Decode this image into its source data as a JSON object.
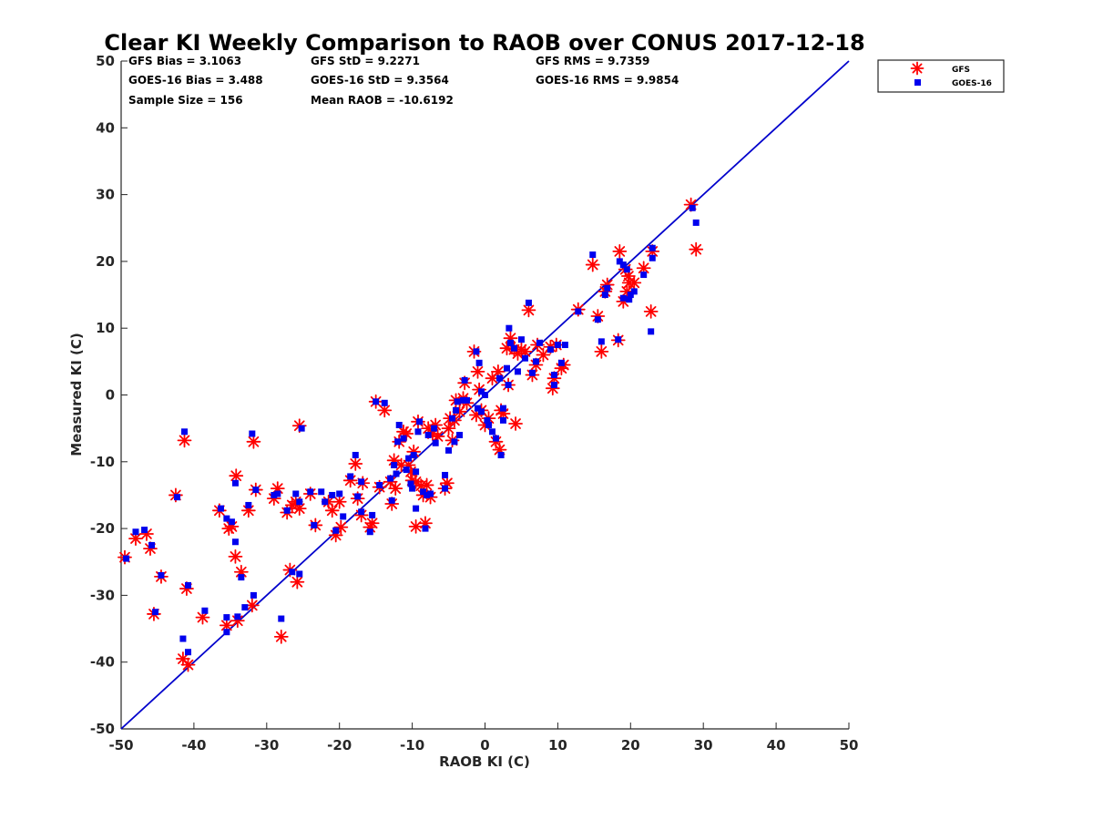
{
  "chart_data": {
    "type": "scatter",
    "title": "Clear KI Weekly Comparison to RAOB over CONUS 2017-12-18",
    "xlabel": "RAOB KI (C)",
    "ylabel": "Measured KI (C)",
    "xlim": [
      -50,
      50
    ],
    "ylim": [
      -50,
      50
    ],
    "xticks": [
      "-50",
      "-40",
      "-30",
      "-20",
      "-10",
      "0",
      "10",
      "20",
      "30",
      "40",
      "50"
    ],
    "yticks": [
      "50",
      "40",
      "30",
      "20",
      "10",
      "0",
      "-10",
      "-20",
      "-30",
      "-40",
      "-50"
    ],
    "grid": false,
    "reference_line": {
      "name": "1:1 line",
      "color": "#0000cc",
      "from": [
        -50,
        -50
      ],
      "to": [
        50,
        50
      ]
    },
    "legend_position": "top-right outside",
    "stats": [
      [
        "GFS Bias = 3.1063",
        "GFS StD = 9.2271",
        "GFS RMS = 9.7359"
      ],
      [
        "GOES-16 Bias = 3.488",
        "GOES-16 StD = 9.3564",
        "GOES-16 RMS = 9.9854"
      ],
      [
        "Sample Size = 156",
        "Mean RAOB = -10.6192"
      ]
    ],
    "series": [
      {
        "name": "GFS",
        "marker": "asterisk",
        "color": "#ff0000",
        "points": [
          [
            -49.5,
            -24.3
          ],
          [
            -48,
            -21.5
          ],
          [
            -46.5,
            -20.8
          ],
          [
            -46,
            -23
          ],
          [
            -45.5,
            -32.8
          ],
          [
            -44.5,
            -27.2
          ],
          [
            -42.5,
            -15
          ],
          [
            -41.5,
            -39.5
          ],
          [
            -41.3,
            -6.8
          ],
          [
            -41,
            -29
          ],
          [
            -40.8,
            -40.4
          ],
          [
            -38.8,
            -33.3
          ],
          [
            -36.5,
            -17.3
          ],
          [
            -35.5,
            -34.5
          ],
          [
            -35.2,
            -20
          ],
          [
            -34.8,
            -19.7
          ],
          [
            -34.3,
            -24.2
          ],
          [
            -34.2,
            -12.1
          ],
          [
            -34,
            -33.8
          ],
          [
            -33.5,
            -26.5
          ],
          [
            -32.5,
            -17.3
          ],
          [
            -32,
            -31.5
          ],
          [
            -31.8,
            -7
          ],
          [
            -31.5,
            -14.2
          ],
          [
            -29,
            -15.5
          ],
          [
            -28.5,
            -14
          ],
          [
            -28,
            -36.2
          ],
          [
            -27.2,
            -17.6
          ],
          [
            -26.8,
            -26.2
          ],
          [
            -26.5,
            -16.5
          ],
          [
            -26,
            -16
          ],
          [
            -25.8,
            -28
          ],
          [
            -25.5,
            -17
          ],
          [
            -25.5,
            -4.6
          ],
          [
            -24,
            -14.8
          ],
          [
            -23.3,
            -19.5
          ],
          [
            -21.5,
            -16
          ],
          [
            -21,
            -17.3
          ],
          [
            -20.5,
            -21
          ],
          [
            -20,
            -16
          ],
          [
            -19.8,
            -19.8
          ],
          [
            -18.5,
            -12.8
          ],
          [
            -17.8,
            -10.3
          ],
          [
            -17.5,
            -15.5
          ],
          [
            -17,
            -18
          ],
          [
            -16.8,
            -13.2
          ],
          [
            -15.8,
            -19.8
          ],
          [
            -15.5,
            -19.2
          ],
          [
            -15,
            -1
          ],
          [
            -14.5,
            -13.8
          ],
          [
            -13.8,
            -2.3
          ],
          [
            -13,
            -13
          ],
          [
            -12.8,
            -16.3
          ],
          [
            -12.5,
            -9.8
          ],
          [
            -12.3,
            -14
          ],
          [
            -11.8,
            -7
          ],
          [
            -11.5,
            -10.5
          ],
          [
            -11.2,
            -5.5
          ],
          [
            -10.8,
            -5.8
          ],
          [
            -10.5,
            -10.5
          ],
          [
            -10.2,
            -11.5
          ],
          [
            -10,
            -12.8
          ],
          [
            -9.8,
            -8.5
          ],
          [
            -9.5,
            -19.7
          ],
          [
            -9.5,
            -13
          ],
          [
            -9.2,
            -4
          ],
          [
            -8.8,
            -13.6
          ],
          [
            -8.5,
            -15
          ],
          [
            -8.2,
            -19.2
          ],
          [
            -8,
            -13.5
          ],
          [
            -7.8,
            -5
          ],
          [
            -7.5,
            -15.3
          ],
          [
            -7.2,
            -5.8
          ],
          [
            -6.8,
            -4.5
          ],
          [
            -6.5,
            -6.2
          ],
          [
            -5.5,
            -14
          ],
          [
            -5.2,
            -13.2
          ],
          [
            -5,
            -5
          ],
          [
            -4.8,
            -3.5
          ],
          [
            -4.5,
            -6.8
          ],
          [
            -4.2,
            -3.8
          ],
          [
            -4,
            -0.8
          ],
          [
            -3.5,
            -2.5
          ],
          [
            -3,
            -0.5
          ],
          [
            -2.8,
            1.8
          ],
          [
            -2.5,
            -1.2
          ],
          [
            -1.5,
            6.5
          ],
          [
            -1.2,
            -3
          ],
          [
            -1,
            3.5
          ],
          [
            -0.8,
            0.8
          ],
          [
            -0.5,
            -2.3
          ],
          [
            0,
            -4.5
          ],
          [
            0.5,
            -3.5
          ],
          [
            1,
            2.5
          ],
          [
            1.5,
            -7
          ],
          [
            1.8,
            3.5
          ],
          [
            2,
            -8.2
          ],
          [
            2.2,
            -2.3
          ],
          [
            2.5,
            -2.8
          ],
          [
            3,
            7
          ],
          [
            3.2,
            1.5
          ],
          [
            3.5,
            8.5
          ],
          [
            4,
            6.8
          ],
          [
            4.2,
            -4.3
          ],
          [
            4.5,
            6.2
          ],
          [
            5,
            6.8
          ],
          [
            5.5,
            6.5
          ],
          [
            6,
            12.7
          ],
          [
            6.5,
            3
          ],
          [
            7,
            4.5
          ],
          [
            7.2,
            7.5
          ],
          [
            8,
            6
          ],
          [
            9,
            7.2
          ],
          [
            9.3,
            1
          ],
          [
            9.5,
            2.5
          ],
          [
            9.8,
            7.5
          ],
          [
            10.5,
            4
          ],
          [
            10.8,
            4.5
          ],
          [
            12.8,
            12.8
          ],
          [
            14.8,
            19.5
          ],
          [
            15.5,
            11.8
          ],
          [
            16,
            6.5
          ],
          [
            16.5,
            15.5
          ],
          [
            16.8,
            16.5
          ],
          [
            18.3,
            8.2
          ],
          [
            18.5,
            21.5
          ],
          [
            19,
            14
          ],
          [
            19.3,
            18.8
          ],
          [
            19.5,
            15.5
          ],
          [
            19.7,
            17.8
          ],
          [
            19.8,
            16.8
          ],
          [
            20.5,
            16.8
          ],
          [
            21.8,
            19
          ],
          [
            22.8,
            12.5
          ],
          [
            23,
            21.5
          ],
          [
            28.3,
            28.5
          ],
          [
            29,
            21.8
          ]
        ]
      },
      {
        "name": "GOES-16",
        "marker": "square",
        "color": "#0000ee",
        "points": [
          [
            -49.3,
            -24.5
          ],
          [
            -48,
            -20.5
          ],
          [
            -46.8,
            -20.2
          ],
          [
            -45.8,
            -22.5
          ],
          [
            -45.3,
            -32.5
          ],
          [
            -44.5,
            -27
          ],
          [
            -42.3,
            -15.3
          ],
          [
            -41.5,
            -36.5
          ],
          [
            -41.3,
            -5.5
          ],
          [
            -40.8,
            -28.5
          ],
          [
            -40.8,
            -38.5
          ],
          [
            -38.5,
            -32.3
          ],
          [
            -36.3,
            -17
          ],
          [
            -35.5,
            -35.5
          ],
          [
            -35.5,
            -33.3
          ],
          [
            -35.5,
            -18.5
          ],
          [
            -34.8,
            -19
          ],
          [
            -34.3,
            -22
          ],
          [
            -34.3,
            -13.2
          ],
          [
            -34,
            -33.2
          ],
          [
            -33.5,
            -27.3
          ],
          [
            -33,
            -31.8
          ],
          [
            -32.5,
            -16.5
          ],
          [
            -32,
            -5.8
          ],
          [
            -31.8,
            -30
          ],
          [
            -31.5,
            -14.2
          ],
          [
            -29,
            -15
          ],
          [
            -28.5,
            -14.8
          ],
          [
            -28,
            -33.5
          ],
          [
            -27.2,
            -17.3
          ],
          [
            -26.5,
            -26.5
          ],
          [
            -26,
            -14.8
          ],
          [
            -25.5,
            -26.8
          ],
          [
            -25.5,
            -16
          ],
          [
            -25.2,
            -5
          ],
          [
            -24,
            -14.5
          ],
          [
            -23.5,
            -19.5
          ],
          [
            -22.5,
            -14.5
          ],
          [
            -22,
            -16
          ],
          [
            -21,
            -15
          ],
          [
            -20.5,
            -20.3
          ],
          [
            -20,
            -14.8
          ],
          [
            -19.5,
            -18.2
          ],
          [
            -18.5,
            -12.2
          ],
          [
            -17.8,
            -9
          ],
          [
            -17.5,
            -15.2
          ],
          [
            -17,
            -13
          ],
          [
            -17,
            -17.5
          ],
          [
            -15.8,
            -20.5
          ],
          [
            -15.5,
            -18
          ],
          [
            -15,
            -1
          ],
          [
            -14.5,
            -13.5
          ],
          [
            -13.8,
            -1.2
          ],
          [
            -13,
            -12.5
          ],
          [
            -12.8,
            -15.8
          ],
          [
            -12.5,
            -10.5
          ],
          [
            -12.2,
            -11.8
          ],
          [
            -12,
            -7
          ],
          [
            -11.8,
            -4.5
          ],
          [
            -11.2,
            -6.5
          ],
          [
            -10.8,
            -11.2
          ],
          [
            -10.5,
            -9.5
          ],
          [
            -10.2,
            -13.3
          ],
          [
            -10,
            -14
          ],
          [
            -9.8,
            -9
          ],
          [
            -9.5,
            -17
          ],
          [
            -9.5,
            -11.5
          ],
          [
            -9.2,
            -5.5
          ],
          [
            -9,
            -4
          ],
          [
            -8.5,
            -14.5
          ],
          [
            -8.2,
            -20
          ],
          [
            -8,
            -15
          ],
          [
            -7.8,
            -6
          ],
          [
            -7.5,
            -14.8
          ],
          [
            -7,
            -5
          ],
          [
            -6.8,
            -7.2
          ],
          [
            -5.5,
            -14
          ],
          [
            -5.5,
            -12
          ],
          [
            -5,
            -8.3
          ],
          [
            -4.5,
            -3.5
          ],
          [
            -4.2,
            -7
          ],
          [
            -4,
            -2.3
          ],
          [
            -3.8,
            -1
          ],
          [
            -3.5,
            -6
          ],
          [
            -3,
            -0.8
          ],
          [
            -2.8,
            2.2
          ],
          [
            -2.5,
            -0.8
          ],
          [
            -1.2,
            6.5
          ],
          [
            -1,
            -2
          ],
          [
            -0.8,
            4.8
          ],
          [
            -0.5,
            0.5
          ],
          [
            -0.5,
            -2.5
          ],
          [
            0,
            0
          ],
          [
            0.3,
            -3.8
          ],
          [
            0.5,
            -4.5
          ],
          [
            1,
            -5.5
          ],
          [
            1.5,
            -6.5
          ],
          [
            2,
            2.5
          ],
          [
            2.2,
            -9
          ],
          [
            2.5,
            -3.8
          ],
          [
            2.5,
            -2
          ],
          [
            3,
            4
          ],
          [
            3.2,
            1.5
          ],
          [
            3.3,
            10
          ],
          [
            3.5,
            7.8
          ],
          [
            4,
            7
          ],
          [
            4.5,
            3.5
          ],
          [
            5,
            8.3
          ],
          [
            5.5,
            5.5
          ],
          [
            6,
            13.8
          ],
          [
            6.5,
            3.3
          ],
          [
            7,
            5
          ],
          [
            7.5,
            7.8
          ],
          [
            9,
            6.8
          ],
          [
            9.5,
            3
          ],
          [
            9.5,
            1.5
          ],
          [
            10,
            7.5
          ],
          [
            10.5,
            4.8
          ],
          [
            11,
            7.5
          ],
          [
            12.8,
            12.5
          ],
          [
            14.8,
            21
          ],
          [
            15.5,
            11.3
          ],
          [
            16,
            8
          ],
          [
            16.5,
            15
          ],
          [
            16.8,
            16
          ],
          [
            18.3,
            8.3
          ],
          [
            18.5,
            20
          ],
          [
            19,
            14.5
          ],
          [
            19,
            19.5
          ],
          [
            19.5,
            18.8
          ],
          [
            19.8,
            14.3
          ],
          [
            20,
            15
          ],
          [
            20.5,
            15.5
          ],
          [
            21.8,
            18
          ],
          [
            22.8,
            9.5
          ],
          [
            23,
            22
          ],
          [
            23,
            20.5
          ],
          [
            28.5,
            28
          ],
          [
            29,
            25.8
          ]
        ]
      }
    ]
  }
}
